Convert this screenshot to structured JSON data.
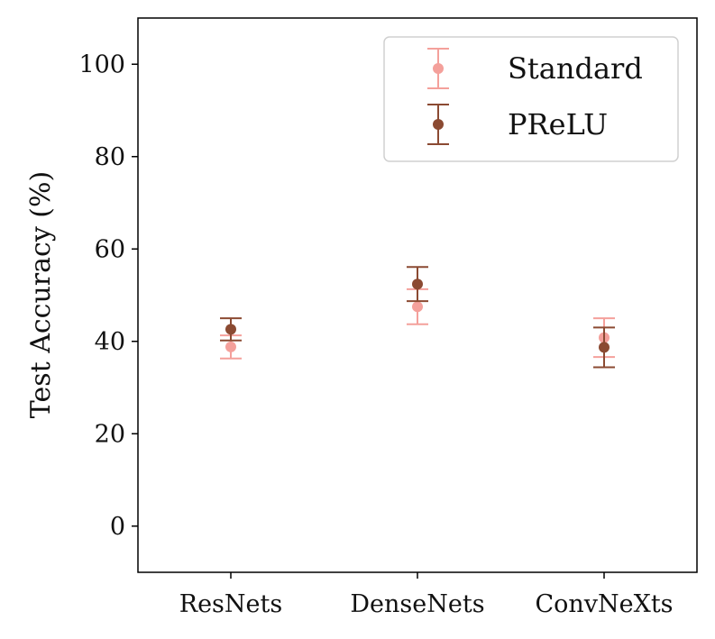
{
  "chart_data": {
    "type": "scatter",
    "title": "",
    "xlabel": "",
    "ylabel": "Test Accuracy (%)",
    "categories": [
      "ResNets",
      "DenseNets",
      "ConvNeXts"
    ],
    "ylim": [
      -10,
      110
    ],
    "yticks": [
      0,
      20,
      40,
      60,
      80,
      100
    ],
    "grid": false,
    "legend_position": "top-right",
    "series": [
      {
        "name": "Standard",
        "color": "#F4A09B",
        "values": [
          38.8,
          47.5,
          40.8
        ],
        "errors": [
          2.5,
          3.8,
          4.2
        ]
      },
      {
        "name": "PReLU",
        "color": "#8B4A32",
        "values": [
          42.6,
          52.4,
          38.7
        ],
        "errors": [
          2.4,
          3.7,
          4.3
        ]
      }
    ]
  }
}
